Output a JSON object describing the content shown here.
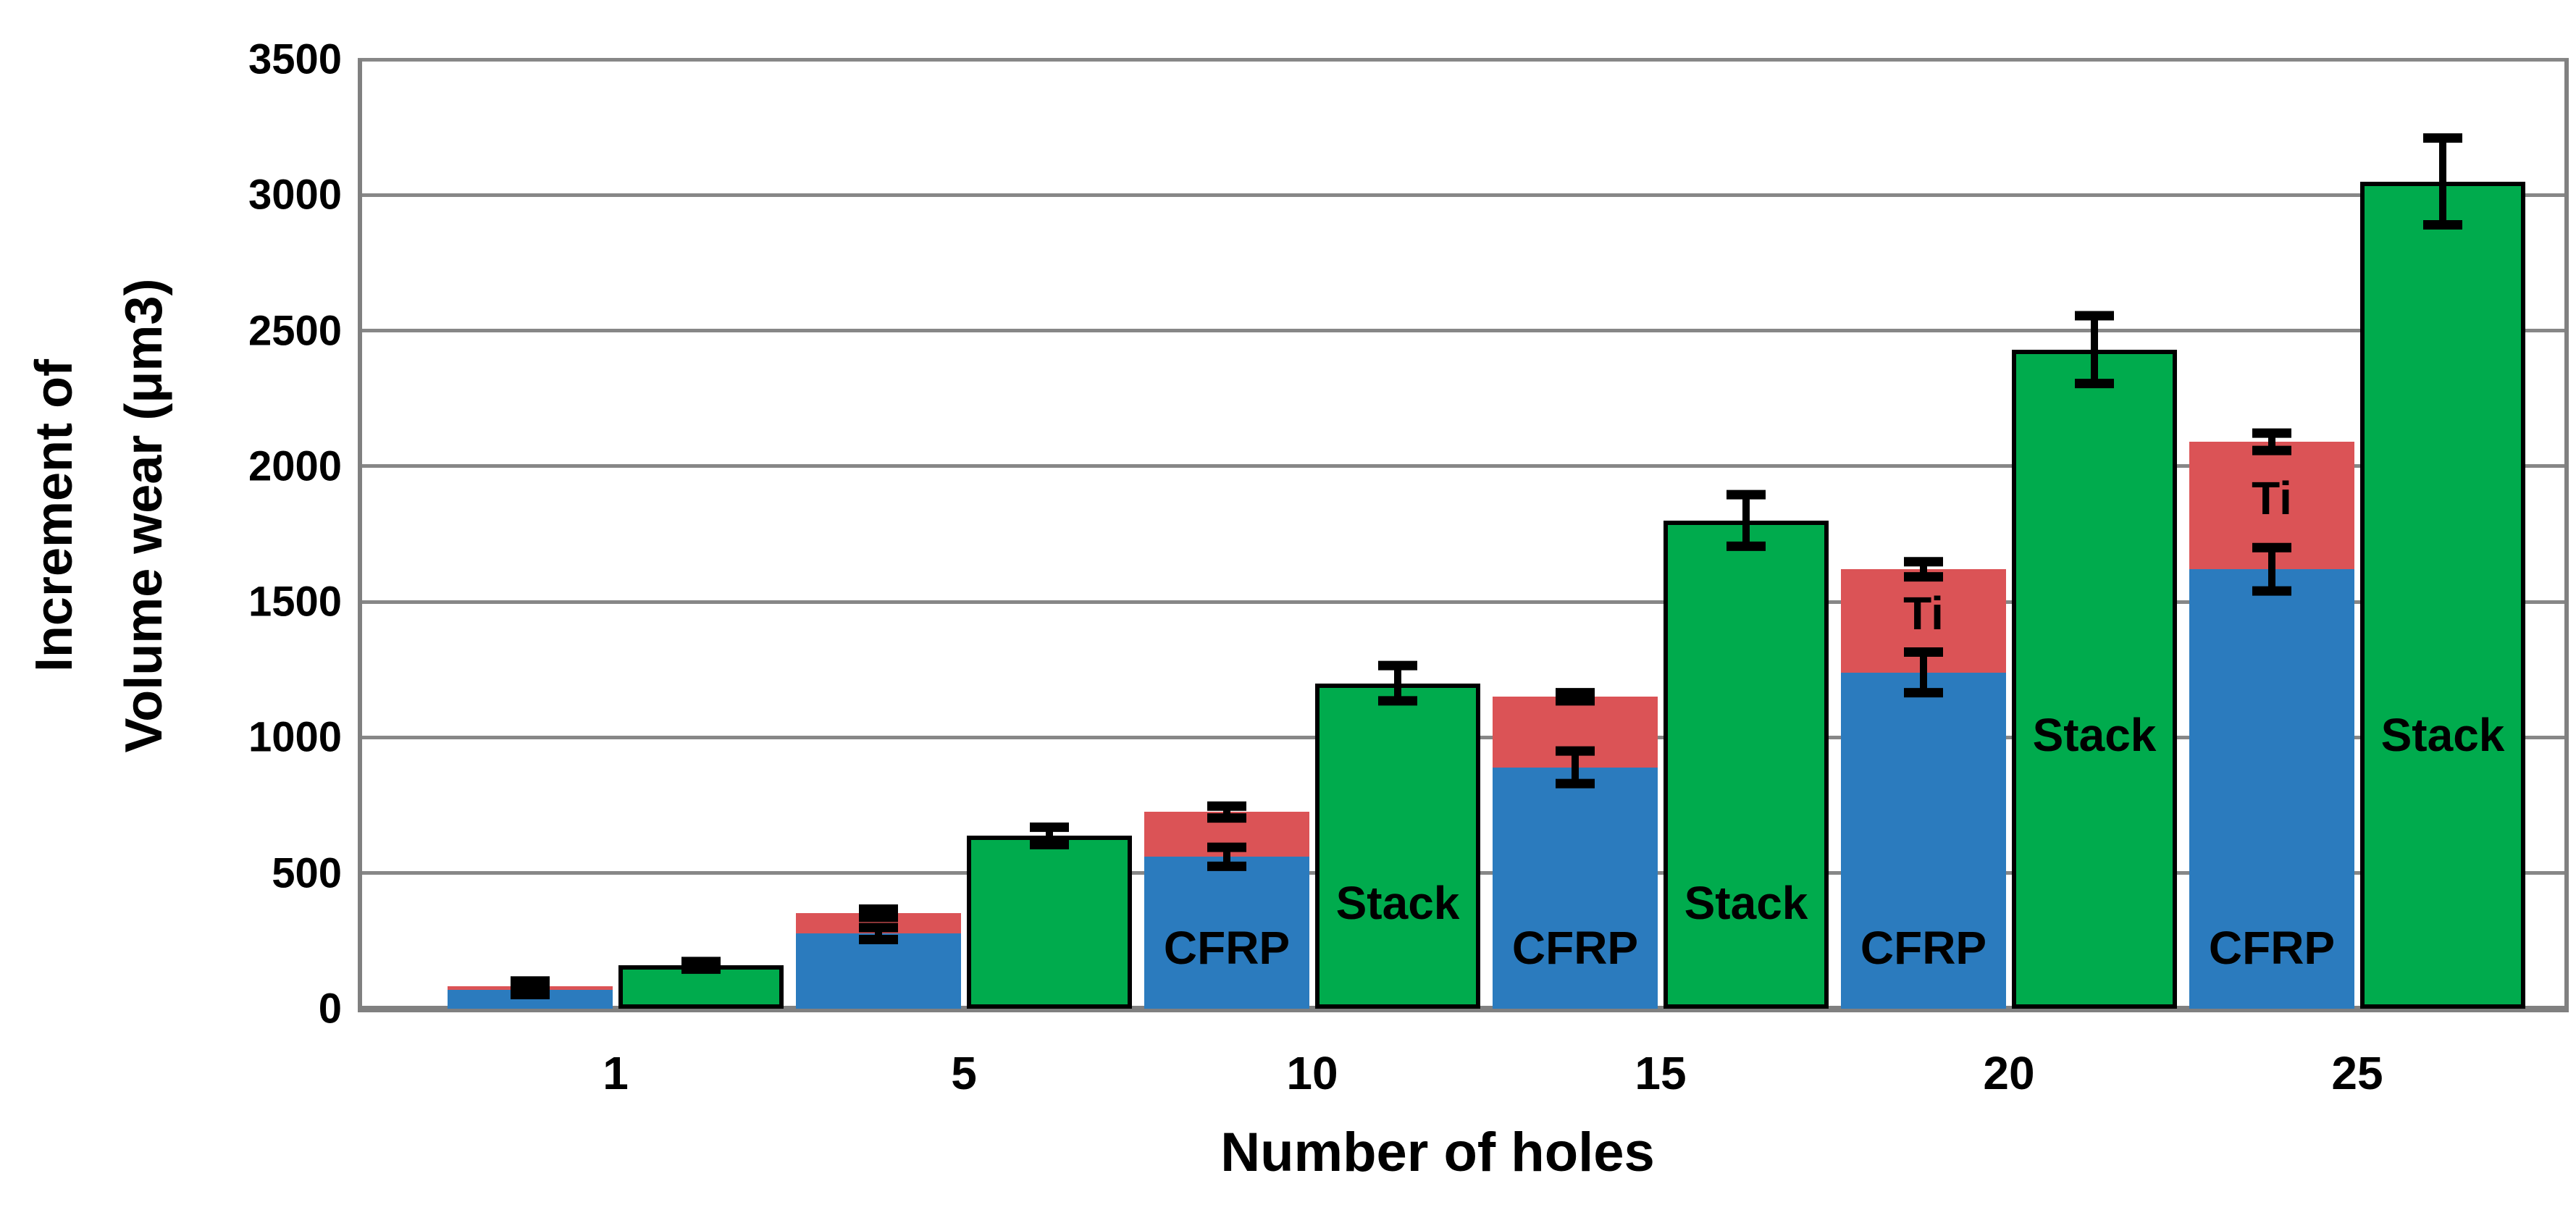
{
  "chart_data": {
    "type": "bar",
    "subtype": "grouped-columns-with-stacked-pair",
    "title": "",
    "xlabel": "Number of holes",
    "ylabel_line1": "Increment of",
    "ylabel_line2": "Volume wear (μm3)",
    "ylim": [
      0,
      3500
    ],
    "ytick_step": 500,
    "ytick_labels": [
      "0",
      "500",
      "1000",
      "1500",
      "2000",
      "2500",
      "3000",
      "3500"
    ],
    "categories": [
      "1",
      "5",
      "10",
      "15",
      "20",
      "25"
    ],
    "grid": true,
    "legend_position": "labels-inside-bars",
    "axis_color": "#878787",
    "baseline_color": "#808080",
    "error_bar_color": "#000000",
    "text_color": "#000000",
    "series": [
      {
        "name": "CFRP",
        "role": "stacked-bottom",
        "color": "#2B7BBE",
        "values": [
          70,
          277,
          560,
          890,
          1240,
          1620
        ],
        "errors": [
          18,
          22,
          35,
          60,
          75,
          80
        ]
      },
      {
        "name": "Ti",
        "role": "stacked-top",
        "color": "#DB5356",
        "values": [
          12,
          75,
          165,
          260,
          380,
          470
        ],
        "stack_totals": [
          82,
          352,
          725,
          1150,
          1620,
          2090
        ],
        "total_errors": [
          20,
          15,
          22,
          15,
          28,
          32
        ]
      },
      {
        "name": "Stack",
        "role": "separate-column",
        "color": "#00AB4D",
        "outline_color": "#000000",
        "values": [
          160,
          637,
          1200,
          1800,
          2430,
          3050
        ],
        "errors": [
          14,
          32,
          65,
          95,
          125,
          160
        ]
      }
    ],
    "bar_text_labels": {
      "cfrp_text": "CFRP",
      "ti_text": "Ti",
      "stack_text": "Stack",
      "cfrp_label_on": [
        "10",
        "15",
        "20",
        "25"
      ],
      "ti_label_on": [
        "20",
        "25"
      ],
      "stack_label_on": [
        "10",
        "15",
        "20",
        "25"
      ]
    }
  }
}
